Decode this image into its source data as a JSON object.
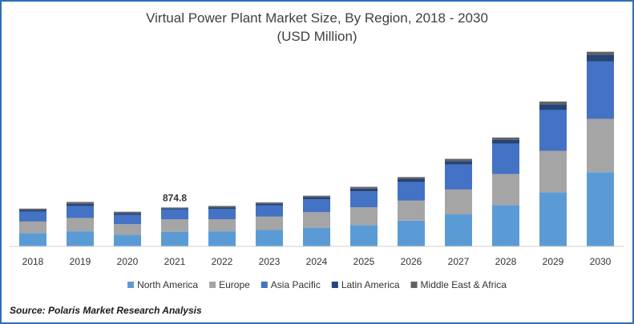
{
  "chart_data": {
    "type": "bar",
    "stacked": true,
    "title": "Virtual Power Plant Market Size, By Region, 2018 - 2030",
    "subtitle": "(USD Million)",
    "categories": [
      "2018",
      "2019",
      "2020",
      "2021",
      "2022",
      "2023",
      "2024",
      "2025",
      "2026",
      "2027",
      "2028",
      "2029",
      "2030"
    ],
    "series": [
      {
        "name": "North America",
        "color": "#5b9bd5",
        "values": [
          300,
          340,
          260,
          330,
          340,
          370,
          420,
          480,
          580,
          720,
          930,
          1220,
          1670
        ]
      },
      {
        "name": "Europe",
        "color": "#a5a5a5",
        "values": [
          260,
          300,
          240,
          280,
          270,
          300,
          350,
          400,
          450,
          560,
          700,
          930,
          1200
        ]
      },
      {
        "name": "Asia Pacific",
        "color": "#4472c4",
        "values": [
          220,
          270,
          210,
          220,
          230,
          250,
          290,
          360,
          420,
          560,
          680,
          920,
          1290
        ]
      },
      {
        "name": "Latin America",
        "color": "#264478",
        "values": [
          40,
          50,
          40,
          30,
          40,
          40,
          50,
          60,
          70,
          80,
          90,
          130,
          150
        ]
      },
      {
        "name": "Middle East & Africa",
        "color": "#636363",
        "values": [
          30,
          40,
          30,
          15,
          30,
          30,
          30,
          40,
          40,
          50,
          50,
          60,
          70
        ]
      }
    ],
    "annotations": [
      {
        "category": "2021",
        "text": "874.8"
      }
    ],
    "ylim": [
      0,
      4500
    ],
    "xlabel": "",
    "ylabel": "",
    "grid": false,
    "legend_position": "bottom"
  },
  "source": "Source: Polaris  Market Research Analysis"
}
